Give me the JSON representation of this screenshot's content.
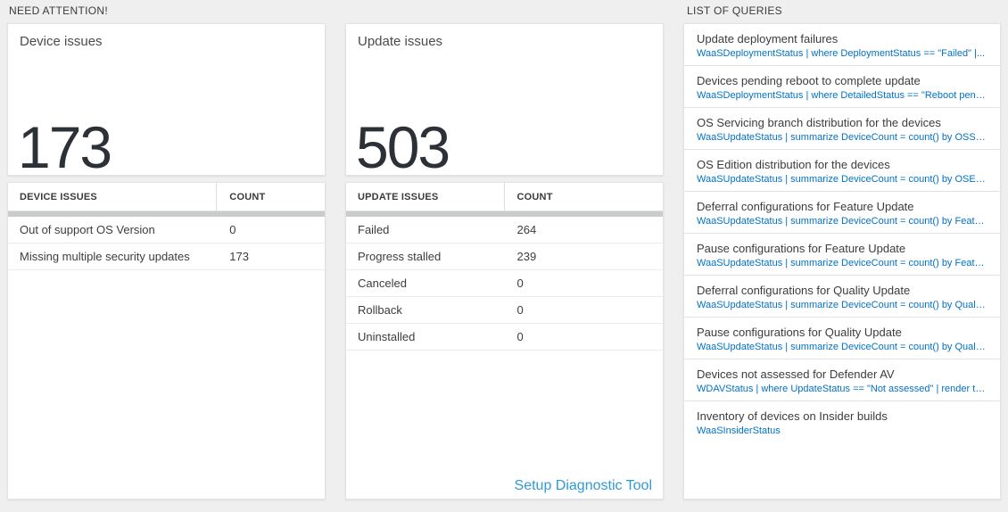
{
  "colors": {
    "accent_blue": "#0072c6",
    "link_light_blue": "#2e9bd8",
    "big_number": "#2b3137"
  },
  "sections": {
    "need_attention": "NEED ATTENTION!",
    "list_of_queries": "LIST OF QUERIES"
  },
  "device_issues": {
    "title": "Device issues",
    "big_number": "173",
    "table": {
      "headers": [
        "DEVICE ISSUES",
        "COUNT"
      ],
      "rows": [
        {
          "label": "Out of support OS Version",
          "count": "0"
        },
        {
          "label": "Missing multiple security updates",
          "count": "173"
        }
      ]
    }
  },
  "update_issues": {
    "title": "Update issues",
    "big_number": "503",
    "table": {
      "headers": [
        "UPDATE ISSUES",
        "COUNT"
      ],
      "rows": [
        {
          "label": "Failed",
          "count": "264"
        },
        {
          "label": "Progress stalled",
          "count": "239"
        },
        {
          "label": "Canceled",
          "count": "0"
        },
        {
          "label": "Rollback",
          "count": "0"
        },
        {
          "label": "Uninstalled",
          "count": "0"
        }
      ]
    },
    "footer_link": "Setup Diagnostic Tool"
  },
  "queries": {
    "items": [
      {
        "title": "Update deployment failures",
        "query": "WaaSDeploymentStatus | where DeploymentStatus == \"Failed\" |..."
      },
      {
        "title": "Devices pending reboot to complete update",
        "query": "WaaSDeploymentStatus | where DetailedStatus == \"Reboot pend..."
      },
      {
        "title": "OS Servicing branch distribution for the devices",
        "query": "WaaSUpdateStatus | summarize DeviceCount = count() by OSSer..."
      },
      {
        "title": "OS Edition distribution for the devices",
        "query": "WaaSUpdateStatus | summarize DeviceCount = count() by OSEdit..."
      },
      {
        "title": "Deferral configurations for Feature Update",
        "query": "WaaSUpdateStatus | summarize DeviceCount = count() by Featur..."
      },
      {
        "title": "Pause configurations for Feature Update",
        "query": "WaaSUpdateStatus | summarize DeviceCount = count() by Featur..."
      },
      {
        "title": "Deferral configurations for Quality Update",
        "query": "WaaSUpdateStatus | summarize DeviceCount = count() by Qualit..."
      },
      {
        "title": "Pause configurations for Quality Update",
        "query": "WaaSUpdateStatus | summarize DeviceCount = count() by Qualit..."
      },
      {
        "title": "Devices not assessed for Defender AV",
        "query": "WDAVStatus | where UpdateStatus == \"Not assessed\" | render ta..."
      },
      {
        "title": "Inventory of devices on Insider builds",
        "query": "WaaSInsiderStatus"
      }
    ]
  }
}
